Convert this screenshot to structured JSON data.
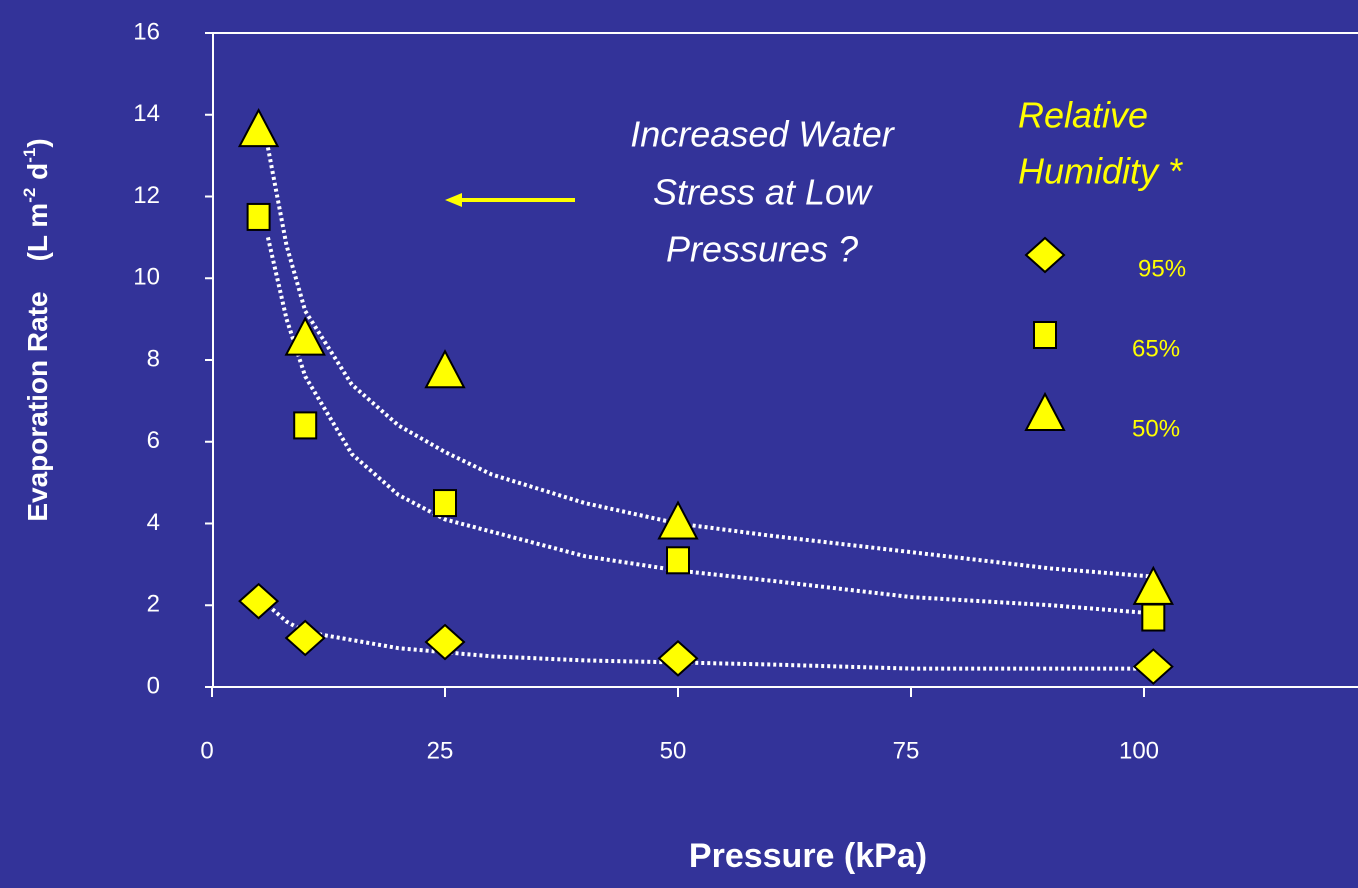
{
  "chart_data": {
    "type": "scatter",
    "xlabel": "Pressure (kPa)",
    "ylabel": [
      "Evaporation Rate",
      "(L m",
      "-2",
      " d",
      "-1",
      ")"
    ],
    "annotation": [
      "Increased Water",
      "Stress at Low",
      "Pressures ?"
    ],
    "legend_title": [
      "Relative",
      "Humidity *"
    ],
    "xlim": [
      0,
      123
    ],
    "ylim": [
      0,
      16
    ],
    "xticks": [
      0,
      25,
      50,
      75,
      100
    ],
    "yticks": [
      0,
      2,
      4,
      6,
      8,
      10,
      12,
      14,
      16
    ],
    "series": [
      {
        "name": "95%",
        "color": "#ffff00",
        "marker": "diamond",
        "x": [
          5,
          10,
          25,
          50,
          101
        ],
        "values": [
          2.1,
          1.2,
          1.1,
          0.7,
          0.5
        ],
        "trendline": {
          "x": [
            6,
            8,
            10,
            15,
            20,
            25,
            30,
            40,
            50,
            60,
            75,
            90,
            101
          ],
          "values": [
            2.0,
            1.6,
            1.35,
            1.15,
            0.95,
            0.85,
            0.75,
            0.65,
            0.6,
            0.55,
            0.45,
            0.45,
            0.45
          ]
        }
      },
      {
        "name": "65%",
        "color": "#ffff00",
        "marker": "square",
        "x": [
          5,
          10,
          25,
          50,
          101
        ],
        "values": [
          11.5,
          6.4,
          4.5,
          3.1,
          1.7
        ],
        "trendline": {
          "x": [
            6,
            8,
            10,
            15,
            20,
            25,
            30,
            40,
            50,
            60,
            75,
            90,
            101
          ],
          "values": [
            11.0,
            9.0,
            7.6,
            5.7,
            4.7,
            4.1,
            3.8,
            3.2,
            2.85,
            2.6,
            2.2,
            2.0,
            1.8
          ]
        }
      },
      {
        "name": "50%",
        "color": "#ffff00",
        "marker": "triangle",
        "x": [
          5,
          10,
          25,
          50,
          101
        ],
        "values": [
          13.6,
          8.5,
          7.7,
          4.0,
          2.4
        ],
        "trendline": {
          "x": [
            6,
            8,
            10,
            15,
            20,
            25,
            30,
            40,
            50,
            60,
            75,
            90,
            101
          ],
          "values": [
            13.2,
            10.8,
            9.2,
            7.4,
            6.4,
            5.75,
            5.2,
            4.5,
            4.0,
            3.7,
            3.3,
            2.9,
            2.7
          ]
        }
      }
    ]
  }
}
